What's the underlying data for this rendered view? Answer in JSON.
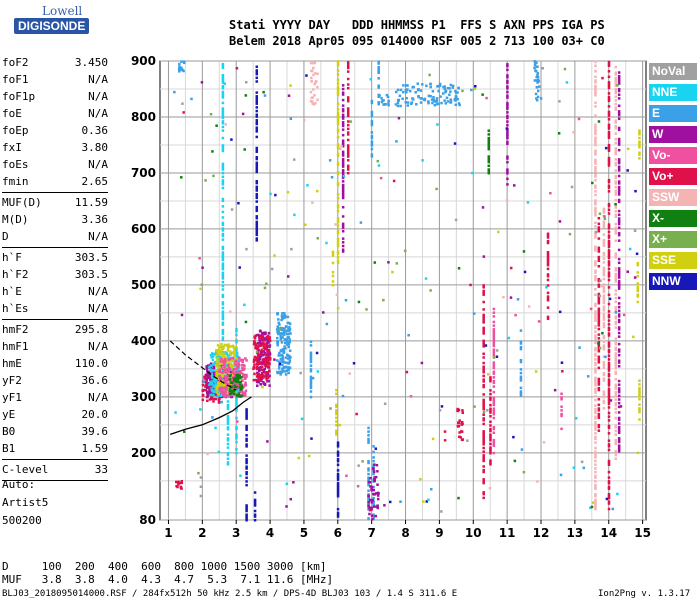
{
  "header": {
    "line1": "Stati YYYY DAY   DDD HHMMSS P1  FFS S AXN PPS IGA PS",
    "line2": "Belem 2018 Apr05 095 014000 RSF 005 2 713 100 03+ C0"
  },
  "logo": {
    "line1": "Lowell",
    "line2": "DIGISONDE"
  },
  "params": [
    {
      "label": "foF2",
      "value": "3.450"
    },
    {
      "label": "foF1",
      "value": "N/A"
    },
    {
      "label": "foF1p",
      "value": "N/A"
    },
    {
      "label": "foE",
      "value": "N/A"
    },
    {
      "label": "foEp",
      "value": "0.36"
    },
    {
      "label": "fxI",
      "value": "3.80"
    },
    {
      "label": "foEs",
      "value": "N/A"
    },
    {
      "label": "fmin",
      "value": "2.65"
    },
    {
      "sep": true
    },
    {
      "label": "MUF(D)",
      "value": "11.59"
    },
    {
      "label": "M(D)",
      "value": "3.36"
    },
    {
      "label": "D",
      "value": "N/A"
    },
    {
      "sep": true
    },
    {
      "label": "h`F",
      "value": "303.5"
    },
    {
      "label": "h`F2",
      "value": "303.5"
    },
    {
      "label": "h`E",
      "value": "N/A"
    },
    {
      "label": "h`Es",
      "value": "N/A"
    },
    {
      "sep": true
    },
    {
      "label": "hmF2",
      "value": "295.8"
    },
    {
      "label": "hmF1",
      "value": "N/A"
    },
    {
      "label": "hmE",
      "value": "110.0"
    },
    {
      "label": "yF2",
      "value": "36.6"
    },
    {
      "label": "yF1",
      "value": "N/A"
    },
    {
      "label": "yE",
      "value": "20.0"
    },
    {
      "label": "B0",
      "value": "39.6"
    },
    {
      "label": "B1",
      "value": "1.59"
    },
    {
      "sep": true
    },
    {
      "label": "C-level",
      "value": "33"
    },
    {
      "sep": true
    }
  ],
  "auto": {
    "line1": "Auto:",
    "line2": "Artist5",
    "line3": "500200"
  },
  "legend": [
    {
      "label": "NoVal",
      "color": "#a0a0a0"
    },
    {
      "label": "NNE",
      "color": "#19d4f0"
    },
    {
      "label": "E",
      "color": "#3aa0e8"
    },
    {
      "label": "W",
      "color": "#a010a0"
    },
    {
      "label": "Vo-",
      "color": "#f050a0"
    },
    {
      "label": "Vo+",
      "color": "#e0104a"
    },
    {
      "label": "SSW",
      "color": "#f4b4b4"
    },
    {
      "label": "X-",
      "color": "#108010"
    },
    {
      "label": "X+",
      "color": "#78b050"
    },
    {
      "label": "SSE",
      "color": "#d0d010"
    },
    {
      "label": "NNW",
      "color": "#1818b8"
    }
  ],
  "footer": {
    "d_row": "D     100  200  400  600  800 1000 1500 3000 [km]",
    "muf_row": "MUF   3.8  3.8  4.0  4.3  4.7  5.3  7.1 11.6 [MHz]",
    "file_info": "BLJ03_2018095014000.RSF / 284fx512h 50 kHz 2.5 km / DPS-4D BLJ03 103 / 1.4 S 311.6 E",
    "version": "Ion2Png v. 1.3.17"
  },
  "chart_data": {
    "type": "scatter",
    "title": "",
    "xlabel": "",
    "ylabel": "",
    "xlim": [
      0.75,
      15.1
    ],
    "ylim": [
      80,
      900
    ],
    "xticks": [
      1,
      2,
      3,
      4,
      5,
      6,
      7,
      8,
      9,
      10,
      11,
      12,
      13,
      14,
      15
    ],
    "yticks": [
      80,
      200,
      300,
      400,
      500,
      600,
      700,
      800,
      900
    ],
    "grid": true,
    "legend_position": "right",
    "profile_curve": {
      "x": [
        1.05,
        1.5,
        2.0,
        2.5,
        2.9,
        3.2,
        3.4,
        3.45
      ],
      "y": [
        233,
        242,
        250,
        263,
        275,
        290,
        298,
        300
      ]
    },
    "dashed_trace": {
      "x": [
        1.05,
        1.5,
        2.0,
        2.3,
        2.7,
        3.0
      ],
      "y": [
        400,
        375,
        352,
        338,
        322,
        312
      ]
    },
    "bands": [
      {
        "x0": 2.0,
        "x1": 2.5,
        "y0": 290,
        "y1": 340,
        "color": "#e0104a"
      },
      {
        "x0": 2.1,
        "x1": 2.9,
        "y0": 300,
        "y1": 360,
        "color": "#a010a0"
      },
      {
        "x0": 2.2,
        "x1": 3.1,
        "y0": 300,
        "y1": 380,
        "color": "#19d4f0"
      },
      {
        "x0": 2.4,
        "x1": 3.0,
        "y0": 305,
        "y1": 395,
        "color": "#d0d010"
      },
      {
        "x0": 2.5,
        "x1": 3.3,
        "y0": 300,
        "y1": 370,
        "color": "#f050a0"
      },
      {
        "x0": 3.6,
        "x1": 4.0,
        "y0": 320,
        "y1": 420,
        "color": "#a010a0"
      },
      {
        "x0": 3.5,
        "x1": 4.0,
        "y0": 330,
        "y1": 410,
        "color": "#e0104a"
      },
      {
        "x0": 4.2,
        "x1": 4.6,
        "y0": 340,
        "y1": 450,
        "color": "#3aa0e8"
      },
      {
        "x0": 2.8,
        "x1": 3.2,
        "y0": 300,
        "y1": 340,
        "color": "#108010"
      }
    ],
    "vertical_streaks": [
      {
        "x": 1.95,
        "y0": 120,
        "y1": 160,
        "color": "#a0a0a0"
      },
      {
        "x": 2.6,
        "y0": 380,
        "y1": 900,
        "color": "#19d4f0"
      },
      {
        "x": 2.75,
        "y0": 180,
        "y1": 400,
        "color": "#19d4f0"
      },
      {
        "x": 3.0,
        "y0": 200,
        "y1": 430,
        "color": "#19d4f0"
      },
      {
        "x": 3.3,
        "y0": 80,
        "y1": 280,
        "color": "#1818b8"
      },
      {
        "x": 3.55,
        "y0": 80,
        "y1": 130,
        "color": "#1818b8"
      },
      {
        "x": 3.6,
        "y0": 580,
        "y1": 900,
        "color": "#1818b8"
      },
      {
        "x": 5.2,
        "y0": 300,
        "y1": 400,
        "color": "#3aa0e8"
      },
      {
        "x": 5.95,
        "y0": 230,
        "y1": 320,
        "color": "#d0d010"
      },
      {
        "x": 5.85,
        "y0": 500,
        "y1": 560,
        "color": "#d0d010"
      },
      {
        "x": 6.0,
        "y0": 540,
        "y1": 900,
        "color": "#d0d010"
      },
      {
        "x": 6.15,
        "y0": 560,
        "y1": 860,
        "color": "#a010a0"
      },
      {
        "x": 6.0,
        "y0": 80,
        "y1": 220,
        "color": "#1818b8"
      },
      {
        "x": 6.3,
        "y0": 700,
        "y1": 900,
        "color": "#e0104a"
      },
      {
        "x": 6.9,
        "y0": 80,
        "y1": 260,
        "color": "#3aa0e8"
      },
      {
        "x": 7.05,
        "y0": 80,
        "y1": 220,
        "color": "#3aa0e8"
      },
      {
        "x": 7.0,
        "y0": 730,
        "y1": 830,
        "color": "#3aa0e8"
      },
      {
        "x": 7.2,
        "y0": 820,
        "y1": 900,
        "color": "#3aa0e8"
      },
      {
        "x": 10.3,
        "y0": 120,
        "y1": 500,
        "color": "#e0104a"
      },
      {
        "x": 10.45,
        "y0": 700,
        "y1": 790,
        "color": "#108010"
      },
      {
        "x": 10.5,
        "y0": 180,
        "y1": 340,
        "color": "#e0104a"
      },
      {
        "x": 10.6,
        "y0": 200,
        "y1": 460,
        "color": "#f050a0"
      },
      {
        "x": 11.0,
        "y0": 680,
        "y1": 900,
        "color": "#a010a0"
      },
      {
        "x": 11.4,
        "y0": 300,
        "y1": 420,
        "color": "#3aa0e8"
      },
      {
        "x": 12.2,
        "y0": 440,
        "y1": 600,
        "color": "#e0104a"
      },
      {
        "x": 12.6,
        "y0": 240,
        "y1": 320,
        "color": "#f050a0"
      },
      {
        "x": 13.6,
        "y0": 100,
        "y1": 900,
        "color": "#f4b4b4"
      },
      {
        "x": 13.7,
        "y0": 240,
        "y1": 620,
        "color": "#e0104a"
      },
      {
        "x": 13.85,
        "y0": 280,
        "y1": 640,
        "color": "#f4b4b4"
      },
      {
        "x": 14.0,
        "y0": 100,
        "y1": 900,
        "color": "#e0104a"
      },
      {
        "x": 14.2,
        "y0": 180,
        "y1": 900,
        "color": "#f4b4b4"
      },
      {
        "x": 14.3,
        "y0": 200,
        "y1": 880,
        "color": "#a010a0"
      },
      {
        "x": 14.9,
        "y0": 260,
        "y1": 340,
        "color": "#d0d010"
      },
      {
        "x": 14.85,
        "y0": 460,
        "y1": 540,
        "color": "#d0d010"
      },
      {
        "x": 14.9,
        "y0": 720,
        "y1": 780,
        "color": "#d0d010"
      }
    ],
    "clusters": [
      {
        "x0": 7.7,
        "x1": 9.6,
        "y0": 820,
        "y1": 860,
        "color": "#3aa0e8"
      },
      {
        "x0": 7.2,
        "x1": 7.5,
        "y0": 820,
        "y1": 840,
        "color": "#3aa0e8"
      },
      {
        "x0": 11.8,
        "x1": 12.0,
        "y0": 830,
        "y1": 900,
        "color": "#3aa0e8"
      },
      {
        "x0": 1.3,
        "x1": 1.5,
        "y0": 880,
        "y1": 900,
        "color": "#3aa0e8"
      },
      {
        "x0": 5.2,
        "x1": 5.4,
        "y0": 820,
        "y1": 900,
        "color": "#f4b4b4"
      },
      {
        "x0": 6.9,
        "x1": 7.2,
        "y0": 80,
        "y1": 180,
        "color": "#a010a0"
      },
      {
        "x0": 9.5,
        "x1": 9.7,
        "y0": 220,
        "y1": 280,
        "color": "#e0104a"
      },
      {
        "x0": 1.2,
        "x1": 1.4,
        "y0": 130,
        "y1": 150,
        "color": "#e0104a"
      }
    ]
  }
}
